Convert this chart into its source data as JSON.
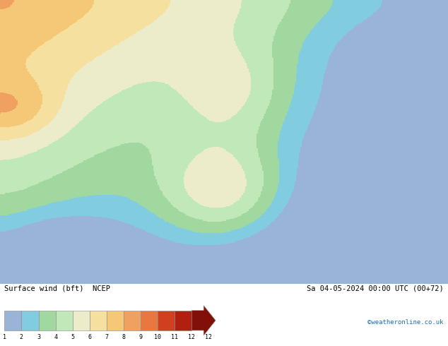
{
  "title_left": "Surface wind (bft)  NCEP",
  "title_right": "Sa 04-05-2024 00:00 UTC (00+72)",
  "credit": "©weatheronline.co.uk",
  "bft_colors": [
    "#9ab4d8",
    "#82cce0",
    "#a0d8a0",
    "#c0e8b8",
    "#ececca",
    "#f5e0a0",
    "#f5c878",
    "#f0a060",
    "#e87840",
    "#d04020",
    "#b02010",
    "#801008"
  ],
  "fig_width": 6.34,
  "fig_height": 4.9,
  "dpi": 100,
  "lon_min": 13.0,
  "lon_max": 30.0,
  "lat_min": 34.0,
  "lat_max": 47.0
}
